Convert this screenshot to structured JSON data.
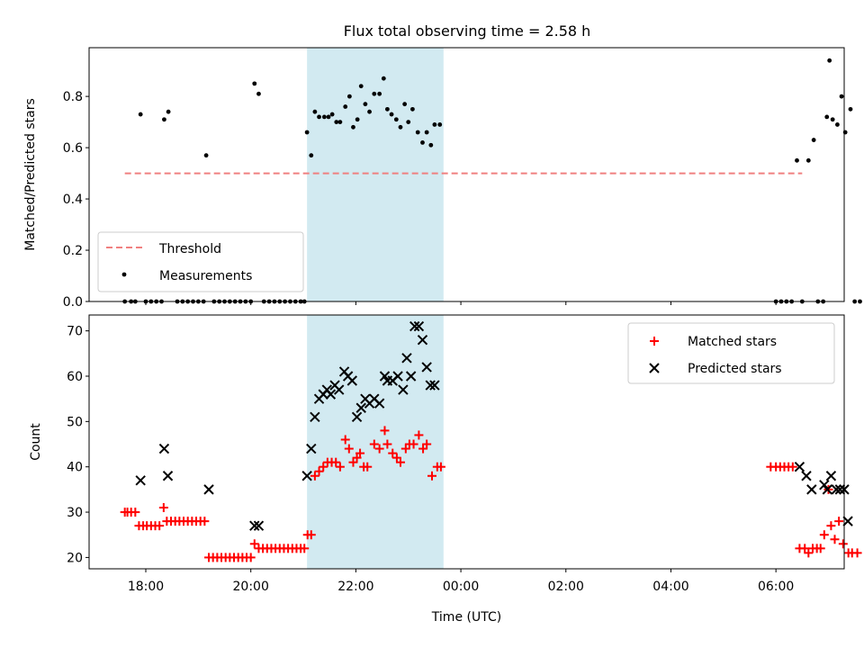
{
  "title": "Flux total observing time = 2.58 h",
  "colors": {
    "threshold": "#f08080",
    "measurement": "#000000",
    "matched": "#ff0000",
    "predicted": "#000000",
    "shade": "#add8e6"
  },
  "chart_data": [
    {
      "type": "scatter",
      "ylabel": "Matched/Predicted stars",
      "xlabel": "",
      "x_unit": "hours (UTC), values beyond 24 are next day",
      "xlim": [
        16.92,
        31.3
      ],
      "ylim": [
        0,
        0.99
      ],
      "yticks": [
        0.0,
        0.2,
        0.4,
        0.6,
        0.8
      ],
      "ytick_labels": [
        "0.0",
        "0.2",
        "0.4",
        "0.6",
        "0.8"
      ],
      "shaded_band": {
        "x": [
          21.07,
          23.67
        ],
        "color": "lightblue"
      },
      "legend": {
        "position": "lower-left",
        "entries": [
          "Threshold",
          "Measurements"
        ]
      },
      "threshold": {
        "name": "Threshold",
        "y": 0.5,
        "x": [
          17.6,
          30.5
        ]
      },
      "series": [
        {
          "name": "Measurements",
          "points": [
            [
              17.6,
              0
            ],
            [
              17.72,
              0
            ],
            [
              17.8,
              0
            ],
            [
              17.9,
              0.73
            ],
            [
              18.0,
              0
            ],
            [
              18.1,
              0
            ],
            [
              18.2,
              0
            ],
            [
              18.3,
              0
            ],
            [
              18.35,
              0.71
            ],
            [
              18.43,
              0.74
            ],
            [
              18.6,
              0
            ],
            [
              18.7,
              0
            ],
            [
              18.8,
              0
            ],
            [
              18.9,
              0
            ],
            [
              19.0,
              0
            ],
            [
              19.1,
              0
            ],
            [
              19.15,
              0.57
            ],
            [
              19.3,
              0
            ],
            [
              19.4,
              0
            ],
            [
              19.5,
              0
            ],
            [
              19.6,
              0
            ],
            [
              19.7,
              0
            ],
            [
              19.8,
              0
            ],
            [
              19.9,
              0
            ],
            [
              20.0,
              0
            ],
            [
              20.07,
              0.85
            ],
            [
              20.15,
              0.81
            ],
            [
              20.25,
              0
            ],
            [
              20.35,
              0
            ],
            [
              20.45,
              0
            ],
            [
              20.55,
              0
            ],
            [
              20.65,
              0
            ],
            [
              20.75,
              0
            ],
            [
              20.85,
              0
            ],
            [
              20.95,
              0
            ],
            [
              21.02,
              0
            ],
            [
              21.07,
              0.66
            ],
            [
              21.15,
              0.57
            ],
            [
              21.22,
              0.74
            ],
            [
              21.3,
              0.72
            ],
            [
              21.4,
              0.72
            ],
            [
              21.48,
              0.72
            ],
            [
              21.55,
              0.73
            ],
            [
              21.63,
              0.7
            ],
            [
              21.7,
              0.7
            ],
            [
              21.8,
              0.76
            ],
            [
              21.88,
              0.8
            ],
            [
              21.95,
              0.68
            ],
            [
              22.03,
              0.71
            ],
            [
              22.1,
              0.84
            ],
            [
              22.18,
              0.77
            ],
            [
              22.26,
              0.74
            ],
            [
              22.35,
              0.81
            ],
            [
              22.45,
              0.81
            ],
            [
              22.53,
              0.87
            ],
            [
              22.6,
              0.75
            ],
            [
              22.68,
              0.73
            ],
            [
              22.77,
              0.71
            ],
            [
              22.85,
              0.68
            ],
            [
              22.93,
              0.77
            ],
            [
              23.0,
              0.7
            ],
            [
              23.08,
              0.75
            ],
            [
              23.18,
              0.66
            ],
            [
              23.27,
              0.62
            ],
            [
              23.35,
              0.66
            ],
            [
              23.43,
              0.61
            ],
            [
              23.5,
              0.69
            ],
            [
              23.6,
              0.69
            ],
            [
              30.0,
              0
            ],
            [
              30.1,
              0
            ],
            [
              30.2,
              0
            ],
            [
              30.3,
              0
            ],
            [
              30.4,
              0.55
            ],
            [
              30.5,
              0
            ],
            [
              30.62,
              0.55
            ],
            [
              30.72,
              0.63
            ],
            [
              30.8,
              0
            ],
            [
              30.9,
              0
            ],
            [
              30.97,
              0.72
            ],
            [
              31.02,
              0.94
            ],
            [
              31.08,
              0.71
            ],
            [
              31.17,
              0.69
            ],
            [
              31.25,
              0.8
            ],
            [
              31.32,
              0.66
            ],
            [
              31.42,
              0.75
            ],
            [
              31.5,
              0
            ],
            [
              31.6,
              0
            ]
          ]
        }
      ]
    },
    {
      "type": "scatter",
      "ylabel": "Count",
      "xlabel": "Time (UTC)",
      "x_unit": "hours (UTC), values beyond 24 are next day",
      "xlim": [
        16.92,
        31.3
      ],
      "ylim": [
        17.5,
        73.5
      ],
      "yticks": [
        20,
        30,
        40,
        50,
        60,
        70
      ],
      "ytick_labels": [
        "20",
        "30",
        "40",
        "50",
        "60",
        "70"
      ],
      "xticks": [
        18,
        20,
        22,
        24,
        26,
        28,
        30
      ],
      "xtick_labels": [
        "18:00",
        "20:00",
        "22:00",
        "00:00",
        "02:00",
        "04:00",
        "06:00"
      ],
      "shaded_band": {
        "x": [
          21.07,
          23.67
        ],
        "color": "lightblue"
      },
      "legend": {
        "position": "upper-right",
        "entries": [
          "Matched stars",
          "Predicted stars"
        ]
      },
      "series": [
        {
          "name": "Matched stars",
          "marker": "plus",
          "points": [
            [
              17.6,
              30
            ],
            [
              17.65,
              30
            ],
            [
              17.72,
              30
            ],
            [
              17.8,
              30
            ],
            [
              17.87,
              27
            ],
            [
              17.95,
              27
            ],
            [
              18.02,
              27
            ],
            [
              18.1,
              27
            ],
            [
              18.18,
              27
            ],
            [
              18.26,
              27
            ],
            [
              18.34,
              31
            ],
            [
              18.4,
              28
            ],
            [
              18.48,
              28
            ],
            [
              18.56,
              28
            ],
            [
              18.64,
              28
            ],
            [
              18.72,
              28
            ],
            [
              18.8,
              28
            ],
            [
              18.88,
              28
            ],
            [
              18.96,
              28
            ],
            [
              19.04,
              28
            ],
            [
              19.12,
              28
            ],
            [
              19.2,
              20
            ],
            [
              19.28,
              20
            ],
            [
              19.36,
              20
            ],
            [
              19.44,
              20
            ],
            [
              19.52,
              20
            ],
            [
              19.6,
              20
            ],
            [
              19.68,
              20
            ],
            [
              19.76,
              20
            ],
            [
              19.84,
              20
            ],
            [
              19.92,
              20
            ],
            [
              20.0,
              20
            ],
            [
              20.07,
              23
            ],
            [
              20.15,
              22
            ],
            [
              20.23,
              22
            ],
            [
              20.31,
              22
            ],
            [
              20.39,
              22
            ],
            [
              20.47,
              22
            ],
            [
              20.55,
              22
            ],
            [
              20.63,
              22
            ],
            [
              20.71,
              22
            ],
            [
              20.79,
              22
            ],
            [
              20.87,
              22
            ],
            [
              20.95,
              22
            ],
            [
              21.02,
              22
            ],
            [
              21.08,
              25
            ],
            [
              21.15,
              25
            ],
            [
              21.22,
              38
            ],
            [
              21.3,
              39
            ],
            [
              21.38,
              40
            ],
            [
              21.46,
              41
            ],
            [
              21.54,
              41
            ],
            [
              21.62,
              41
            ],
            [
              21.7,
              40
            ],
            [
              21.8,
              46
            ],
            [
              21.87,
              44
            ],
            [
              21.95,
              41
            ],
            [
              22.02,
              42
            ],
            [
              22.08,
              43
            ],
            [
              22.15,
              40
            ],
            [
              22.22,
              40
            ],
            [
              22.35,
              45
            ],
            [
              22.45,
              44
            ],
            [
              22.55,
              48
            ],
            [
              22.6,
              45
            ],
            [
              22.7,
              43
            ],
            [
              22.78,
              42
            ],
            [
              22.85,
              41
            ],
            [
              22.95,
              44
            ],
            [
              23.02,
              45
            ],
            [
              23.1,
              45
            ],
            [
              23.2,
              47
            ],
            [
              23.28,
              44
            ],
            [
              23.35,
              45
            ],
            [
              23.45,
              38
            ],
            [
              23.55,
              40
            ],
            [
              23.62,
              40
            ],
            [
              29.9,
              40
            ],
            [
              30.0,
              40
            ],
            [
              30.08,
              40
            ],
            [
              30.16,
              40
            ],
            [
              30.24,
              40
            ],
            [
              30.32,
              40
            ],
            [
              30.45,
              22
            ],
            [
              30.55,
              22
            ],
            [
              30.62,
              21
            ],
            [
              30.7,
              22
            ],
            [
              30.78,
              22
            ],
            [
              30.85,
              22
            ],
            [
              30.92,
              25
            ],
            [
              31.0,
              35
            ],
            [
              31.05,
              27
            ],
            [
              31.12,
              24
            ],
            [
              31.2,
              28
            ],
            [
              31.28,
              23
            ],
            [
              31.38,
              21
            ],
            [
              31.45,
              21
            ],
            [
              31.55,
              21
            ]
          ]
        },
        {
          "name": "Predicted stars",
          "marker": "x",
          "points": [
            [
              17.9,
              37
            ],
            [
              18.35,
              44
            ],
            [
              18.42,
              38
            ],
            [
              19.2,
              35
            ],
            [
              20.07,
              27
            ],
            [
              20.15,
              27
            ],
            [
              21.07,
              38
            ],
            [
              21.15,
              44
            ],
            [
              21.22,
              51
            ],
            [
              21.3,
              55
            ],
            [
              21.38,
              56
            ],
            [
              21.45,
              57
            ],
            [
              21.52,
              56
            ],
            [
              21.6,
              58
            ],
            [
              21.68,
              57
            ],
            [
              21.78,
              61
            ],
            [
              21.85,
              60
            ],
            [
              21.93,
              59
            ],
            [
              22.02,
              51
            ],
            [
              22.1,
              53
            ],
            [
              22.18,
              55
            ],
            [
              22.26,
              54
            ],
            [
              22.35,
              55
            ],
            [
              22.45,
              54
            ],
            [
              22.55,
              60
            ],
            [
              22.6,
              59
            ],
            [
              22.7,
              59
            ],
            [
              22.8,
              60
            ],
            [
              22.9,
              57
            ],
            [
              22.97,
              64
            ],
            [
              23.05,
              60
            ],
            [
              23.12,
              71
            ],
            [
              23.2,
              71
            ],
            [
              23.27,
              68
            ],
            [
              23.35,
              62
            ],
            [
              23.42,
              58
            ],
            [
              23.5,
              58
            ],
            [
              30.45,
              40
            ],
            [
              30.58,
              38
            ],
            [
              30.68,
              35
            ],
            [
              30.92,
              36
            ],
            [
              30.98,
              35
            ],
            [
              31.05,
              38
            ],
            [
              31.15,
              35
            ],
            [
              31.22,
              35
            ],
            [
              31.3,
              35
            ],
            [
              31.37,
              28
            ]
          ]
        }
      ]
    }
  ]
}
